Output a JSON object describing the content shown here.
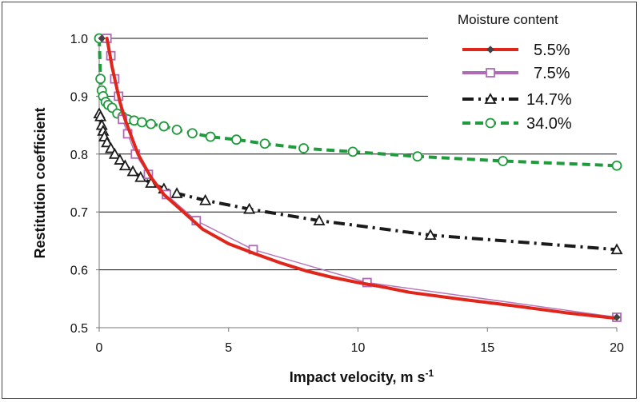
{
  "chart_data": {
    "type": "line",
    "title": "",
    "xlabel": "Impact velocity, m s",
    "xlabel_superscript": "-1",
    "ylabel": "Restitution coefficient",
    "xlim": [
      0,
      20
    ],
    "ylim": [
      0.5,
      1.0
    ],
    "xticks": [
      "0",
      "5",
      "10",
      "15",
      "20"
    ],
    "yticks": [
      "0.5",
      "0.6",
      "0.7",
      "0.8",
      "0.9",
      "1.0"
    ],
    "grid": "horizontal",
    "legend_title": "Moisture content",
    "legend_position": "top-right",
    "series": [
      {
        "name": "5.5%",
        "color": "#e0251b",
        "line": "solid",
        "marker": "diamond",
        "x": [
          0.3,
          0.5,
          0.8,
          1.0,
          1.5,
          2.0,
          2.5,
          3.0,
          4.0,
          5.0,
          6.0,
          7.0,
          8.0,
          9.0,
          10.0,
          11.0,
          12.0,
          14.0,
          16.0,
          18.0,
          20.0
        ],
        "y": [
          1.0,
          0.95,
          0.89,
          0.86,
          0.8,
          0.76,
          0.73,
          0.71,
          0.67,
          0.645,
          0.628,
          0.612,
          0.598,
          0.587,
          0.578,
          0.57,
          0.561,
          0.549,
          0.538,
          0.526,
          0.516
        ],
        "marker_points": {
          "x": [
            0.1,
            20.0
          ],
          "y": [
            1.0,
            0.518
          ]
        }
      },
      {
        "name": "7.5%",
        "color": "#b06ab5",
        "line": "solid",
        "marker": "square",
        "x": [
          0.3,
          0.45,
          0.6,
          0.75,
          0.9,
          1.1,
          1.4,
          1.9,
          2.6,
          3.75,
          5.95,
          10.35,
          20.0
        ],
        "y": [
          1.0,
          0.97,
          0.93,
          0.9,
          0.86,
          0.835,
          0.8,
          0.765,
          0.73,
          0.685,
          0.635,
          0.578,
          0.518
        ]
      },
      {
        "name": "14.7%",
        "color": "#1a1a1a",
        "line": "dash-dot",
        "marker": "triangle",
        "x": [
          0.0,
          0.05,
          0.1,
          0.15,
          0.2,
          0.3,
          0.45,
          0.6,
          0.8,
          1.0,
          1.3,
          1.6,
          2.0,
          2.5,
          3.0,
          4.1,
          5.8,
          8.5,
          12.8,
          20.0
        ],
        "y": [
          0.87,
          0.865,
          0.85,
          0.84,
          0.83,
          0.82,
          0.81,
          0.8,
          0.79,
          0.78,
          0.77,
          0.76,
          0.75,
          0.74,
          0.732,
          0.72,
          0.705,
          0.685,
          0.66,
          0.635
        ]
      },
      {
        "name": "34.0%",
        "color": "#1f9a3d",
        "line": "dashed",
        "marker": "circle",
        "x": [
          0.0,
          0.05,
          0.1,
          0.15,
          0.25,
          0.35,
          0.5,
          0.7,
          0.9,
          1.1,
          1.35,
          1.65,
          2.0,
          2.5,
          3.0,
          3.6,
          4.3,
          5.3,
          6.4,
          7.9,
          9.8,
          12.3,
          15.6,
          20.0
        ],
        "y": [
          1.0,
          0.93,
          0.91,
          0.9,
          0.89,
          0.885,
          0.88,
          0.87,
          0.865,
          0.86,
          0.858,
          0.855,
          0.852,
          0.848,
          0.842,
          0.836,
          0.83,
          0.825,
          0.818,
          0.81,
          0.804,
          0.796,
          0.788,
          0.78
        ]
      }
    ]
  }
}
